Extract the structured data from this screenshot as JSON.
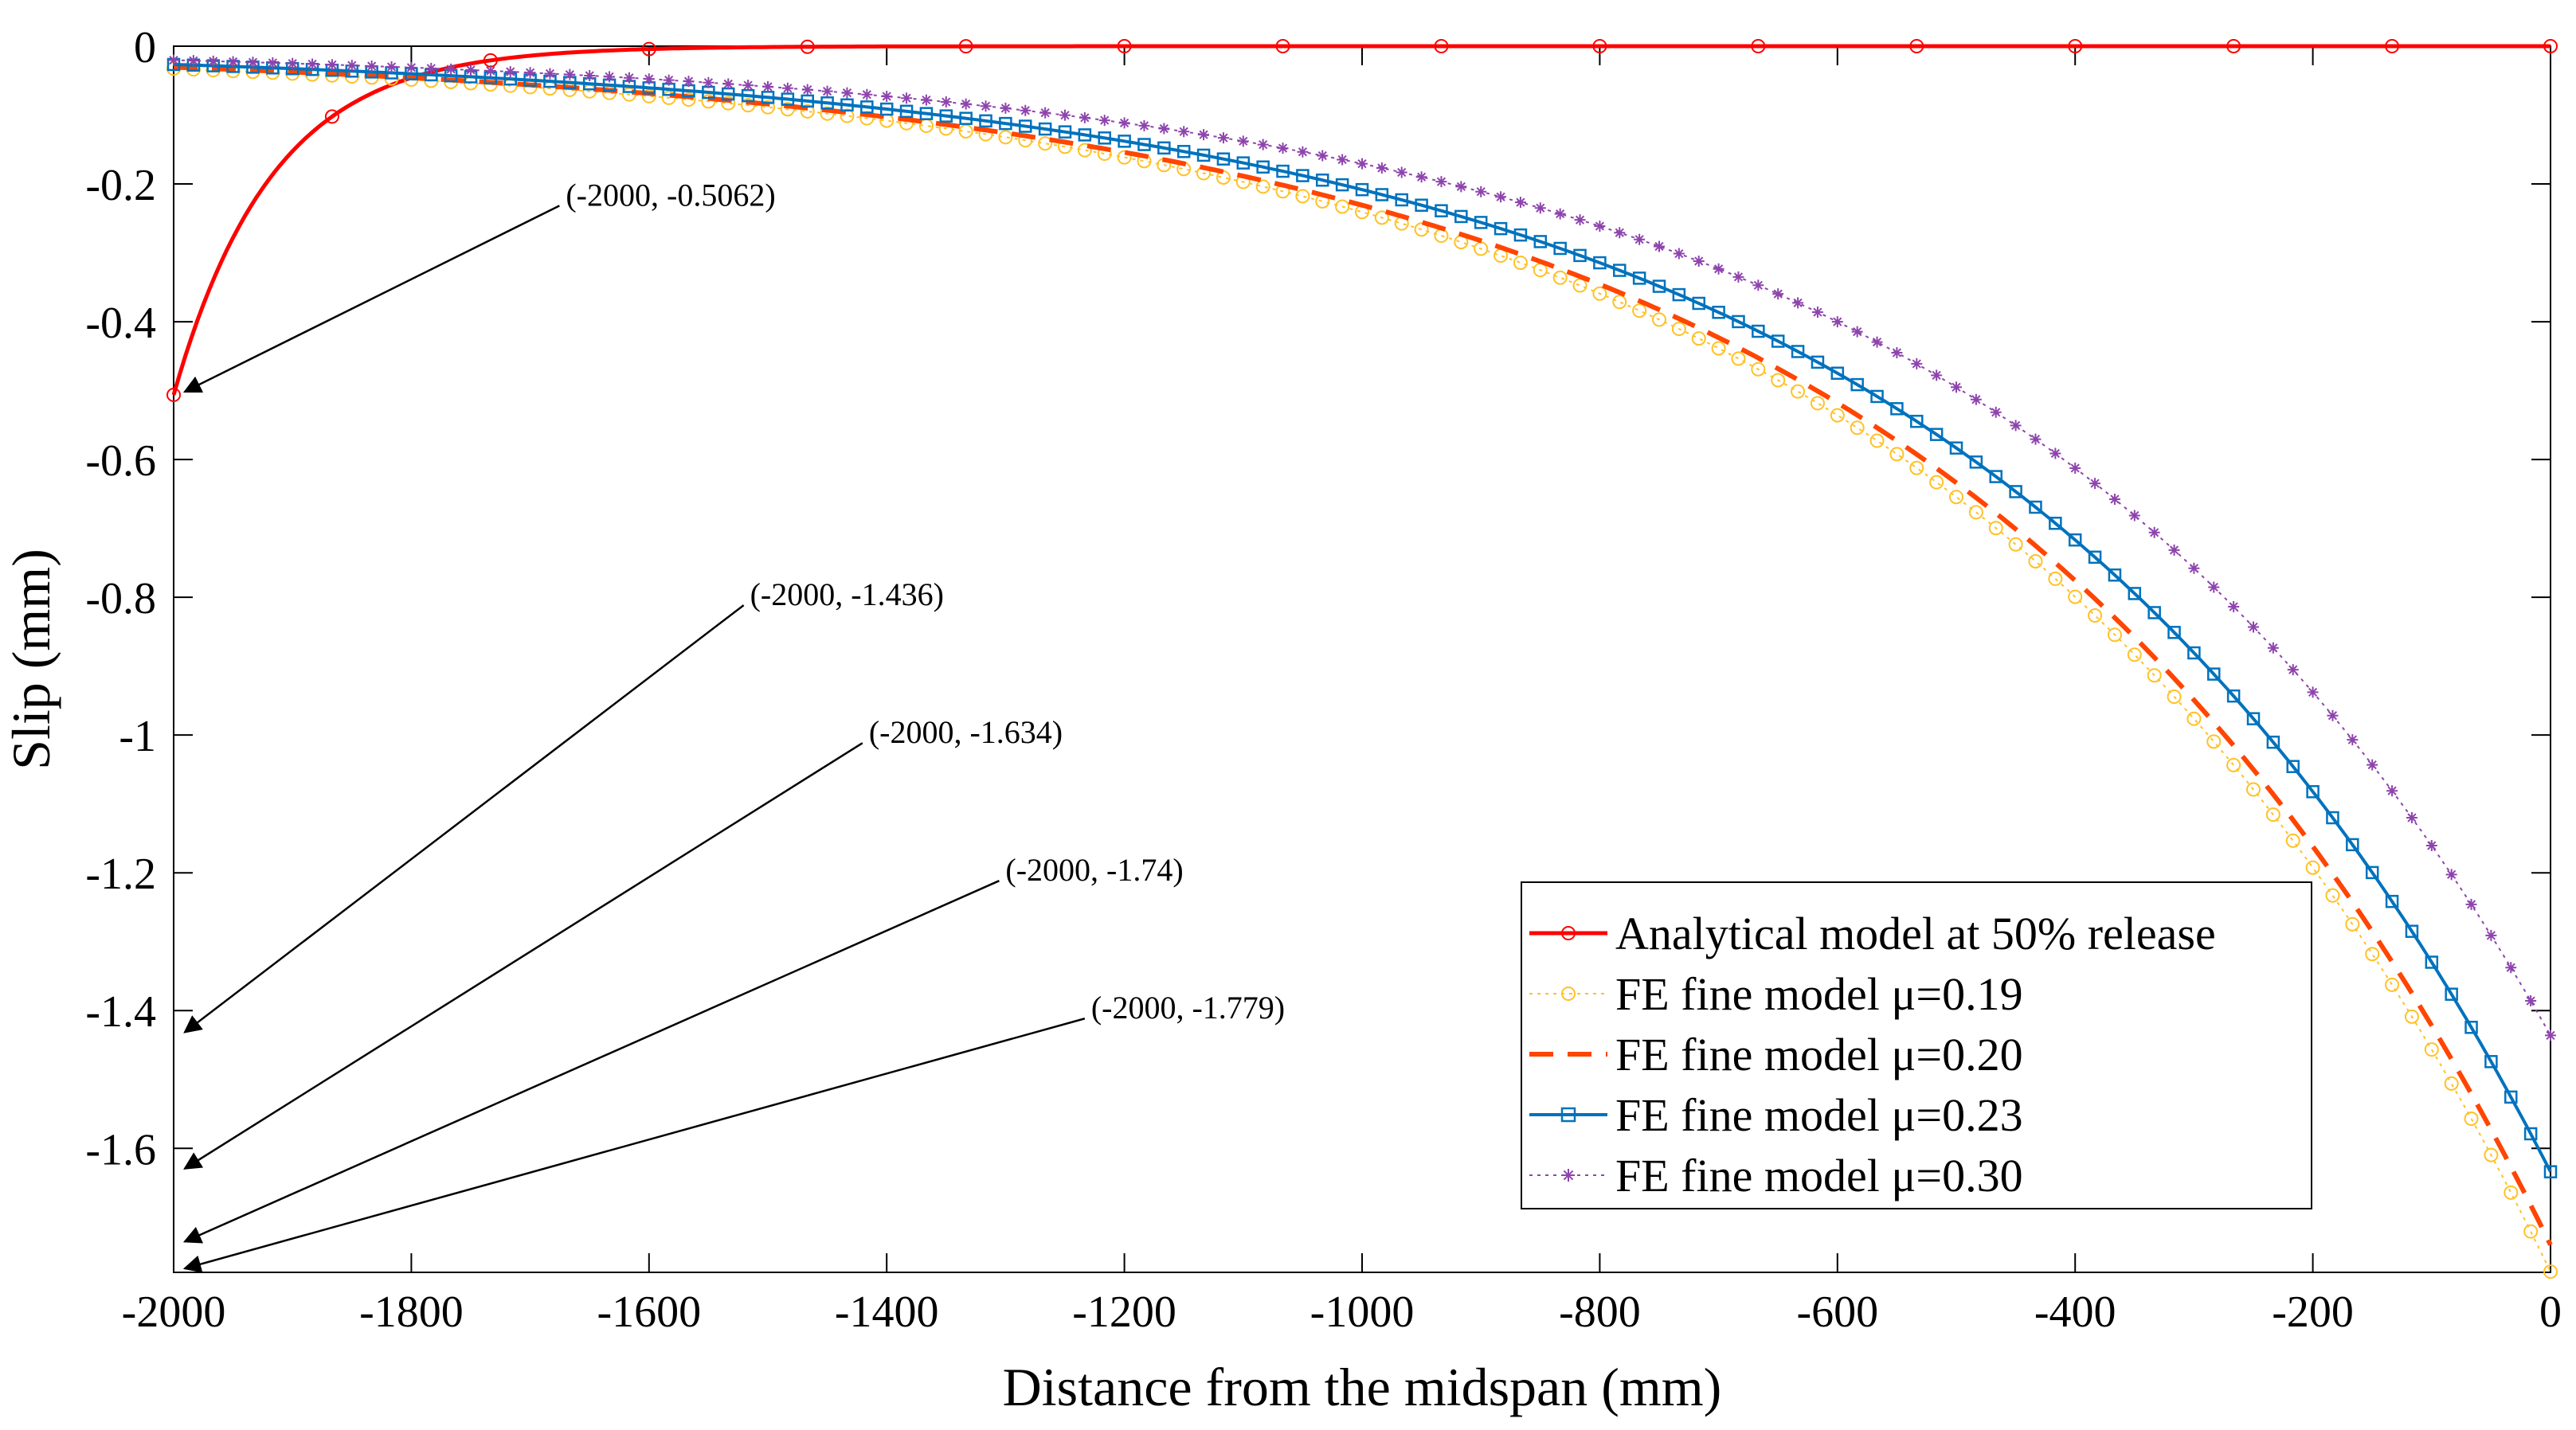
{
  "chart_data": {
    "type": "line",
    "xlabel": "Distance from the midspan (mm)",
    "ylabel": "Slip (mm)",
    "xlim": [
      -2000,
      0
    ],
    "ylim": [
      -1.78,
      0
    ],
    "grid": false,
    "legend_position": "bottom-right",
    "x_ticks": [
      -2000,
      -1800,
      -1600,
      -1400,
      -1200,
      -1000,
      -800,
      -600,
      -400,
      -200,
      0
    ],
    "y_ticks": [
      0,
      -0.2,
      -0.4,
      -0.6,
      -0.8,
      -1,
      -1.2,
      -1.4,
      -1.6
    ],
    "series": [
      {
        "name": "Analytical model at 50% release",
        "model": "analytical",
        "y0": -0.5062,
        "k": 0.012,
        "color": "#ff0000",
        "style": "solid",
        "marker": "circle",
        "marker_step": 8,
        "stroke": 5
      },
      {
        "name": "FE fine model μ=0.19",
        "model": "exp",
        "y0": -1.779,
        "k": 0.002,
        "color": "#ffc125",
        "style": "dotted",
        "marker": "circle",
        "marker_step": 1,
        "stroke": 2
      },
      {
        "name": "FE fine model μ=0.20",
        "model": "exp",
        "y0": -1.74,
        "k": 0.00202,
        "color": "#ff4500",
        "style": "dashed",
        "marker": "none",
        "marker_step": 1,
        "stroke": 6
      },
      {
        "name": "FE fine model μ=0.23",
        "model": "exp",
        "y0": -1.634,
        "k": 0.00206,
        "color": "#0072bd",
        "style": "solid",
        "marker": "square",
        "marker_step": 1,
        "stroke": 4
      },
      {
        "name": "FE fine model μ=0.30",
        "model": "exp",
        "y0": -1.436,
        "k": 0.00213,
        "color": "#8e44ad",
        "style": "dotted",
        "marker": "star",
        "marker_step": 1,
        "stroke": 2
      }
    ],
    "annotations": [
      {
        "text": "(-2000, -0.5062)",
        "x": -2000,
        "y": -0.5062,
        "text_x": -1670,
        "text_y": -0.22
      },
      {
        "text": "(-2000, -1.436)",
        "x": -2000,
        "y": -1.436,
        "text_x": -1515,
        "text_y": -0.8
      },
      {
        "text": "(-2000, -1.634)",
        "x": -2000,
        "y": -1.634,
        "text_x": -1415,
        "text_y": -1.0
      },
      {
        "text": "(-2000, -1.74)",
        "x": -2000,
        "y": -1.74,
        "text_x": -1300,
        "text_y": -1.2
      },
      {
        "text": "(-2000, -1.779)",
        "x": -2000,
        "y": -1.779,
        "text_x": -1228,
        "text_y": -1.4
      }
    ]
  }
}
